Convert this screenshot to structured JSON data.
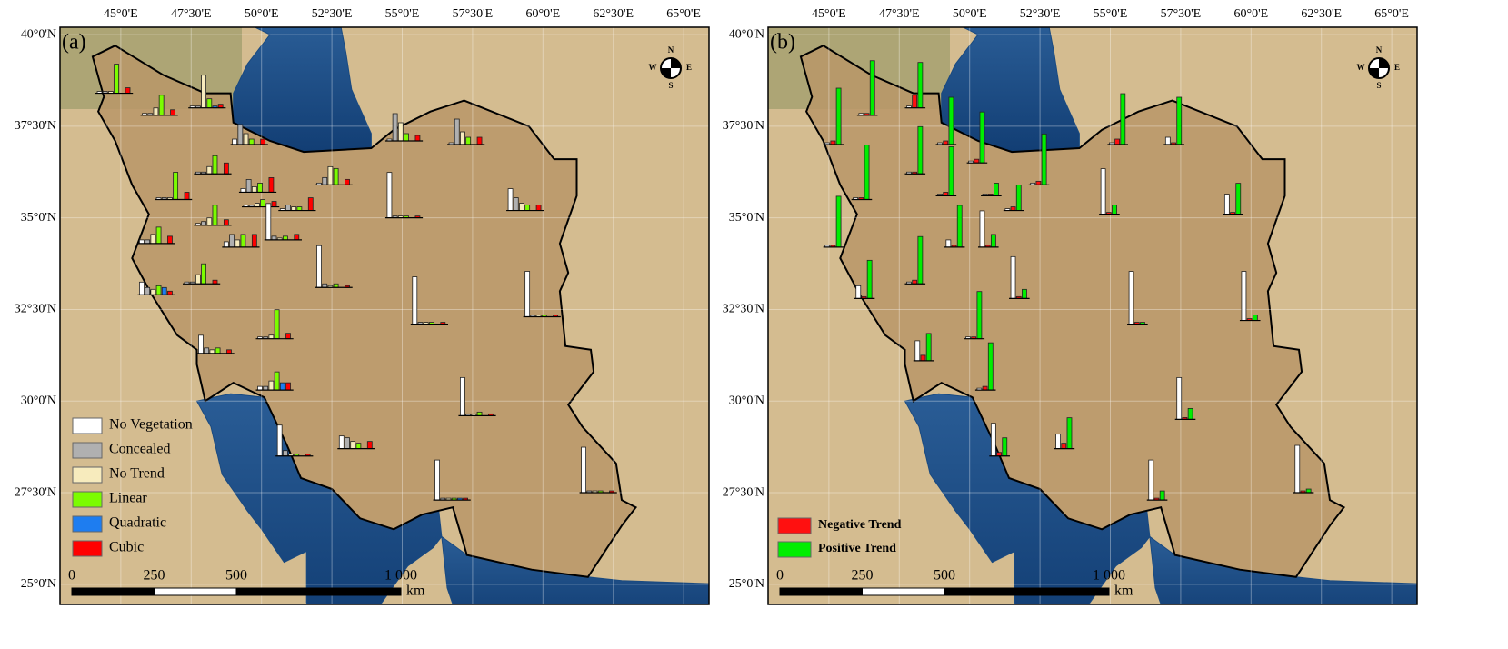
{
  "chart_data": [
    {
      "type": "map-bar",
      "title": "(a)",
      "xlim": [
        42.84,
        65.9
      ],
      "ylim": [
        24.45,
        40.2
      ],
      "xticks": [
        {
          "value": 45,
          "label": "45°0'E"
        },
        {
          "value": 47.5,
          "label": "47°30'E"
        },
        {
          "value": 50,
          "label": "50°0'E"
        },
        {
          "value": 52.5,
          "label": "52°30'E"
        },
        {
          "value": 55,
          "label": "55°0'E"
        },
        {
          "value": 57.5,
          "label": "57°30'E"
        },
        {
          "value": 60,
          "label": "60°0'E"
        },
        {
          "value": 62.5,
          "label": "62°30'E"
        },
        {
          "value": 65,
          "label": "65°0'E"
        }
      ],
      "yticks": [
        {
          "value": 25,
          "label": "25°0'N"
        },
        {
          "value": 27.5,
          "label": "27°30'N"
        },
        {
          "value": 30,
          "label": "30°0'N"
        },
        {
          "value": 32.5,
          "label": "32°30'N"
        },
        {
          "value": 35,
          "label": "35°0'N"
        },
        {
          "value": 37.5,
          "label": "37°30'N"
        },
        {
          "value": 40,
          "label": "40°0'N"
        }
      ],
      "series": [
        {
          "name": "No Vegetation",
          "color": "#ffffff"
        },
        {
          "name": "Concealed",
          "color": "#b0b0b0"
        },
        {
          "name": "No Trend",
          "color": "#f7ebbd"
        },
        {
          "name": "Linear",
          "color": "#7cfc00"
        },
        {
          "name": "Quadratic",
          "color": "#1e7df0"
        },
        {
          "name": "Cubic",
          "color": "#ff0000"
        }
      ],
      "charts": [
        {
          "lon": 44.1,
          "lat": 38.4,
          "values": [
            2,
            2,
            2,
            32,
            0,
            6
          ]
        },
        {
          "lon": 45.7,
          "lat": 37.8,
          "values": [
            2,
            2,
            8,
            22,
            0,
            6
          ]
        },
        {
          "lon": 47.4,
          "lat": 38.0,
          "values": [
            2,
            2,
            36,
            10,
            2,
            4
          ]
        },
        {
          "lon": 48.9,
          "lat": 37.0,
          "values": [
            6,
            22,
            12,
            6,
            0,
            6
          ]
        },
        {
          "lon": 47.6,
          "lat": 36.2,
          "values": [
            2,
            2,
            8,
            20,
            0,
            12
          ]
        },
        {
          "lon": 46.2,
          "lat": 35.5,
          "values": [
            2,
            2,
            2,
            30,
            0,
            8
          ]
        },
        {
          "lon": 47.6,
          "lat": 34.8,
          "values": [
            2,
            4,
            8,
            22,
            0,
            6
          ]
        },
        {
          "lon": 45.6,
          "lat": 34.3,
          "values": [
            4,
            4,
            10,
            18,
            0,
            8
          ]
        },
        {
          "lon": 48.6,
          "lat": 34.2,
          "values": [
            6,
            14,
            8,
            14,
            0,
            14
          ]
        },
        {
          "lon": 47.2,
          "lat": 33.2,
          "values": [
            2,
            2,
            10,
            22,
            0,
            4
          ]
        },
        {
          "lon": 45.6,
          "lat": 32.9,
          "values": [
            14,
            8,
            6,
            10,
            8,
            4
          ]
        },
        {
          "lon": 49.2,
          "lat": 35.7,
          "values": [
            4,
            14,
            6,
            10,
            0,
            16
          ]
        },
        {
          "lon": 49.3,
          "lat": 35.3,
          "values": [
            2,
            2,
            4,
            8,
            0,
            6
          ]
        },
        {
          "lon": 50.1,
          "lat": 34.4,
          "values": [
            40,
            4,
            2,
            4,
            0,
            6
          ]
        },
        {
          "lon": 50.6,
          "lat": 35.2,
          "values": [
            2,
            6,
            4,
            4,
            0,
            14
          ]
        },
        {
          "lon": 51.9,
          "lat": 35.9,
          "values": [
            2,
            8,
            20,
            18,
            0,
            6
          ]
        },
        {
          "lon": 54.4,
          "lat": 37.1,
          "values": [
            2,
            30,
            20,
            8,
            0,
            6
          ]
        },
        {
          "lon": 56.6,
          "lat": 37.0,
          "values": [
            2,
            28,
            14,
            8,
            0,
            8
          ]
        },
        {
          "lon": 54.4,
          "lat": 35.0,
          "values": [
            50,
            2,
            2,
            2,
            0,
            2
          ]
        },
        {
          "lon": 51.9,
          "lat": 33.1,
          "values": [
            46,
            4,
            2,
            4,
            0,
            2
          ]
        },
        {
          "lon": 58.7,
          "lat": 35.2,
          "values": [
            24,
            14,
            8,
            6,
            0,
            6
          ]
        },
        {
          "lon": 55.3,
          "lat": 32.1,
          "values": [
            52,
            2,
            2,
            2,
            0,
            2
          ]
        },
        {
          "lon": 59.3,
          "lat": 32.3,
          "values": [
            50,
            2,
            2,
            2,
            0,
            2
          ]
        },
        {
          "lon": 47.7,
          "lat": 31.3,
          "values": [
            20,
            6,
            4,
            6,
            0,
            4
          ]
        },
        {
          "lon": 49.8,
          "lat": 31.7,
          "values": [
            2,
            2,
            4,
            32,
            0,
            6
          ]
        },
        {
          "lon": 49.8,
          "lat": 30.3,
          "values": [
            4,
            4,
            10,
            20,
            8,
            8
          ]
        },
        {
          "lon": 52.7,
          "lat": 28.7,
          "values": [
            14,
            12,
            8,
            6,
            0,
            8
          ]
        },
        {
          "lon": 50.5,
          "lat": 28.5,
          "values": [
            34,
            6,
            2,
            2,
            0,
            2
          ]
        },
        {
          "lon": 57.0,
          "lat": 29.6,
          "values": [
            42,
            2,
            2,
            4,
            0,
            2
          ]
        },
        {
          "lon": 56.1,
          "lat": 27.3,
          "values": [
            44,
            2,
            2,
            2,
            2,
            2
          ]
        },
        {
          "lon": 61.3,
          "lat": 27.5,
          "values": [
            50,
            2,
            2,
            2,
            0,
            2
          ]
        }
      ],
      "scale_bar": {
        "ticks": [
          0,
          250,
          500,
          {
            "value": 1000,
            "label": "1 000"
          }
        ],
        "unit": "km"
      },
      "compass": {
        "n": "N",
        "s": "S",
        "e": "E",
        "w": "W"
      }
    },
    {
      "type": "map-bar",
      "title": "(b)",
      "xlim": [
        42.84,
        65.9
      ],
      "ylim": [
        24.45,
        40.2
      ],
      "xticks": [
        {
          "value": 45,
          "label": "45°0'E"
        },
        {
          "value": 47.5,
          "label": "47°30'E"
        },
        {
          "value": 50,
          "label": "50°0'E"
        },
        {
          "value": 52.5,
          "label": "52°30'E"
        },
        {
          "value": 55,
          "label": "55°0'E"
        },
        {
          "value": 57.5,
          "label": "57°30'E"
        },
        {
          "value": 60,
          "label": "60°0'E"
        },
        {
          "value": 62.5,
          "label": "62°30'E"
        },
        {
          "value": 65,
          "label": "65°0'E"
        }
      ],
      "yticks": [
        {
          "value": 25,
          "label": "25°0'N"
        },
        {
          "value": 27.5,
          "label": "27°30'N"
        },
        {
          "value": 30,
          "label": "30°0'N"
        },
        {
          "value": 32.5,
          "label": "32°30'N"
        },
        {
          "value": 35,
          "label": "35°0'N"
        },
        {
          "value": 37.5,
          "label": "37°30'N"
        },
        {
          "value": 40,
          "label": "40°0'N"
        }
      ],
      "series": [
        {
          "color": "#ffffff"
        },
        {
          "name": "Negative Trend",
          "color": "#ff1010"
        },
        {
          "name": "Positive Trend",
          "color": "#00ee00"
        }
      ],
      "charts": [
        {
          "lon": 44.8,
          "lat": 37.0,
          "values": [
            2,
            4,
            62
          ]
        },
        {
          "lon": 46.0,
          "lat": 37.8,
          "values": [
            2,
            2,
            60
          ]
        },
        {
          "lon": 47.7,
          "lat": 38.0,
          "values": [
            2,
            14,
            50
          ]
        },
        {
          "lon": 45.8,
          "lat": 35.5,
          "values": [
            2,
            2,
            60
          ]
        },
        {
          "lon": 47.7,
          "lat": 36.2,
          "values": [
            2,
            2,
            52
          ]
        },
        {
          "lon": 48.8,
          "lat": 37.0,
          "values": [
            2,
            4,
            52
          ]
        },
        {
          "lon": 49.9,
          "lat": 36.5,
          "values": [
            2,
            4,
            56
          ]
        },
        {
          "lon": 48.8,
          "lat": 35.6,
          "values": [
            2,
            4,
            54
          ]
        },
        {
          "lon": 52.1,
          "lat": 35.9,
          "values": [
            2,
            4,
            56
          ]
        },
        {
          "lon": 54.9,
          "lat": 37.0,
          "values": [
            2,
            6,
            56
          ]
        },
        {
          "lon": 56.9,
          "lat": 37.0,
          "values": [
            8,
            2,
            52
          ]
        },
        {
          "lon": 44.8,
          "lat": 34.2,
          "values": [
            2,
            2,
            56
          ]
        },
        {
          "lon": 50.4,
          "lat": 35.6,
          "values": [
            2,
            2,
            14
          ]
        },
        {
          "lon": 51.2,
          "lat": 35.2,
          "values": [
            2,
            4,
            28
          ]
        },
        {
          "lon": 50.3,
          "lat": 34.2,
          "values": [
            40,
            2,
            14
          ]
        },
        {
          "lon": 49.1,
          "lat": 34.2,
          "values": [
            8,
            2,
            46
          ]
        },
        {
          "lon": 47.7,
          "lat": 33.2,
          "values": [
            2,
            4,
            52
          ]
        },
        {
          "lon": 45.9,
          "lat": 32.8,
          "values": [
            14,
            2,
            42
          ]
        },
        {
          "lon": 51.4,
          "lat": 32.8,
          "values": [
            46,
            2,
            10
          ]
        },
        {
          "lon": 49.8,
          "lat": 31.7,
          "values": [
            2,
            2,
            52
          ]
        },
        {
          "lon": 54.6,
          "lat": 35.1,
          "values": [
            50,
            2,
            10
          ]
        },
        {
          "lon": 59.0,
          "lat": 35.1,
          "values": [
            22,
            2,
            34
          ]
        },
        {
          "lon": 55.6,
          "lat": 32.1,
          "values": [
            58,
            2,
            2
          ]
        },
        {
          "lon": 59.6,
          "lat": 32.2,
          "values": [
            54,
            2,
            6
          ]
        },
        {
          "lon": 48.0,
          "lat": 31.1,
          "values": [
            22,
            6,
            30
          ]
        },
        {
          "lon": 50.2,
          "lat": 30.3,
          "values": [
            2,
            4,
            52
          ]
        },
        {
          "lon": 50.7,
          "lat": 28.5,
          "values": [
            36,
            4,
            20
          ]
        },
        {
          "lon": 53.0,
          "lat": 28.7,
          "values": [
            16,
            6,
            34
          ]
        },
        {
          "lon": 57.3,
          "lat": 29.5,
          "values": [
            46,
            2,
            12
          ]
        },
        {
          "lon": 56.3,
          "lat": 27.3,
          "values": [
            44,
            2,
            10
          ]
        },
        {
          "lon": 61.5,
          "lat": 27.5,
          "values": [
            52,
            2,
            4
          ]
        }
      ],
      "scale_bar": {
        "ticks": [
          0,
          250,
          500,
          {
            "value": 1000,
            "label": "1 000"
          }
        ],
        "unit": "km"
      },
      "compass": {
        "n": "N",
        "s": "S",
        "e": "E",
        "w": "W"
      }
    }
  ]
}
